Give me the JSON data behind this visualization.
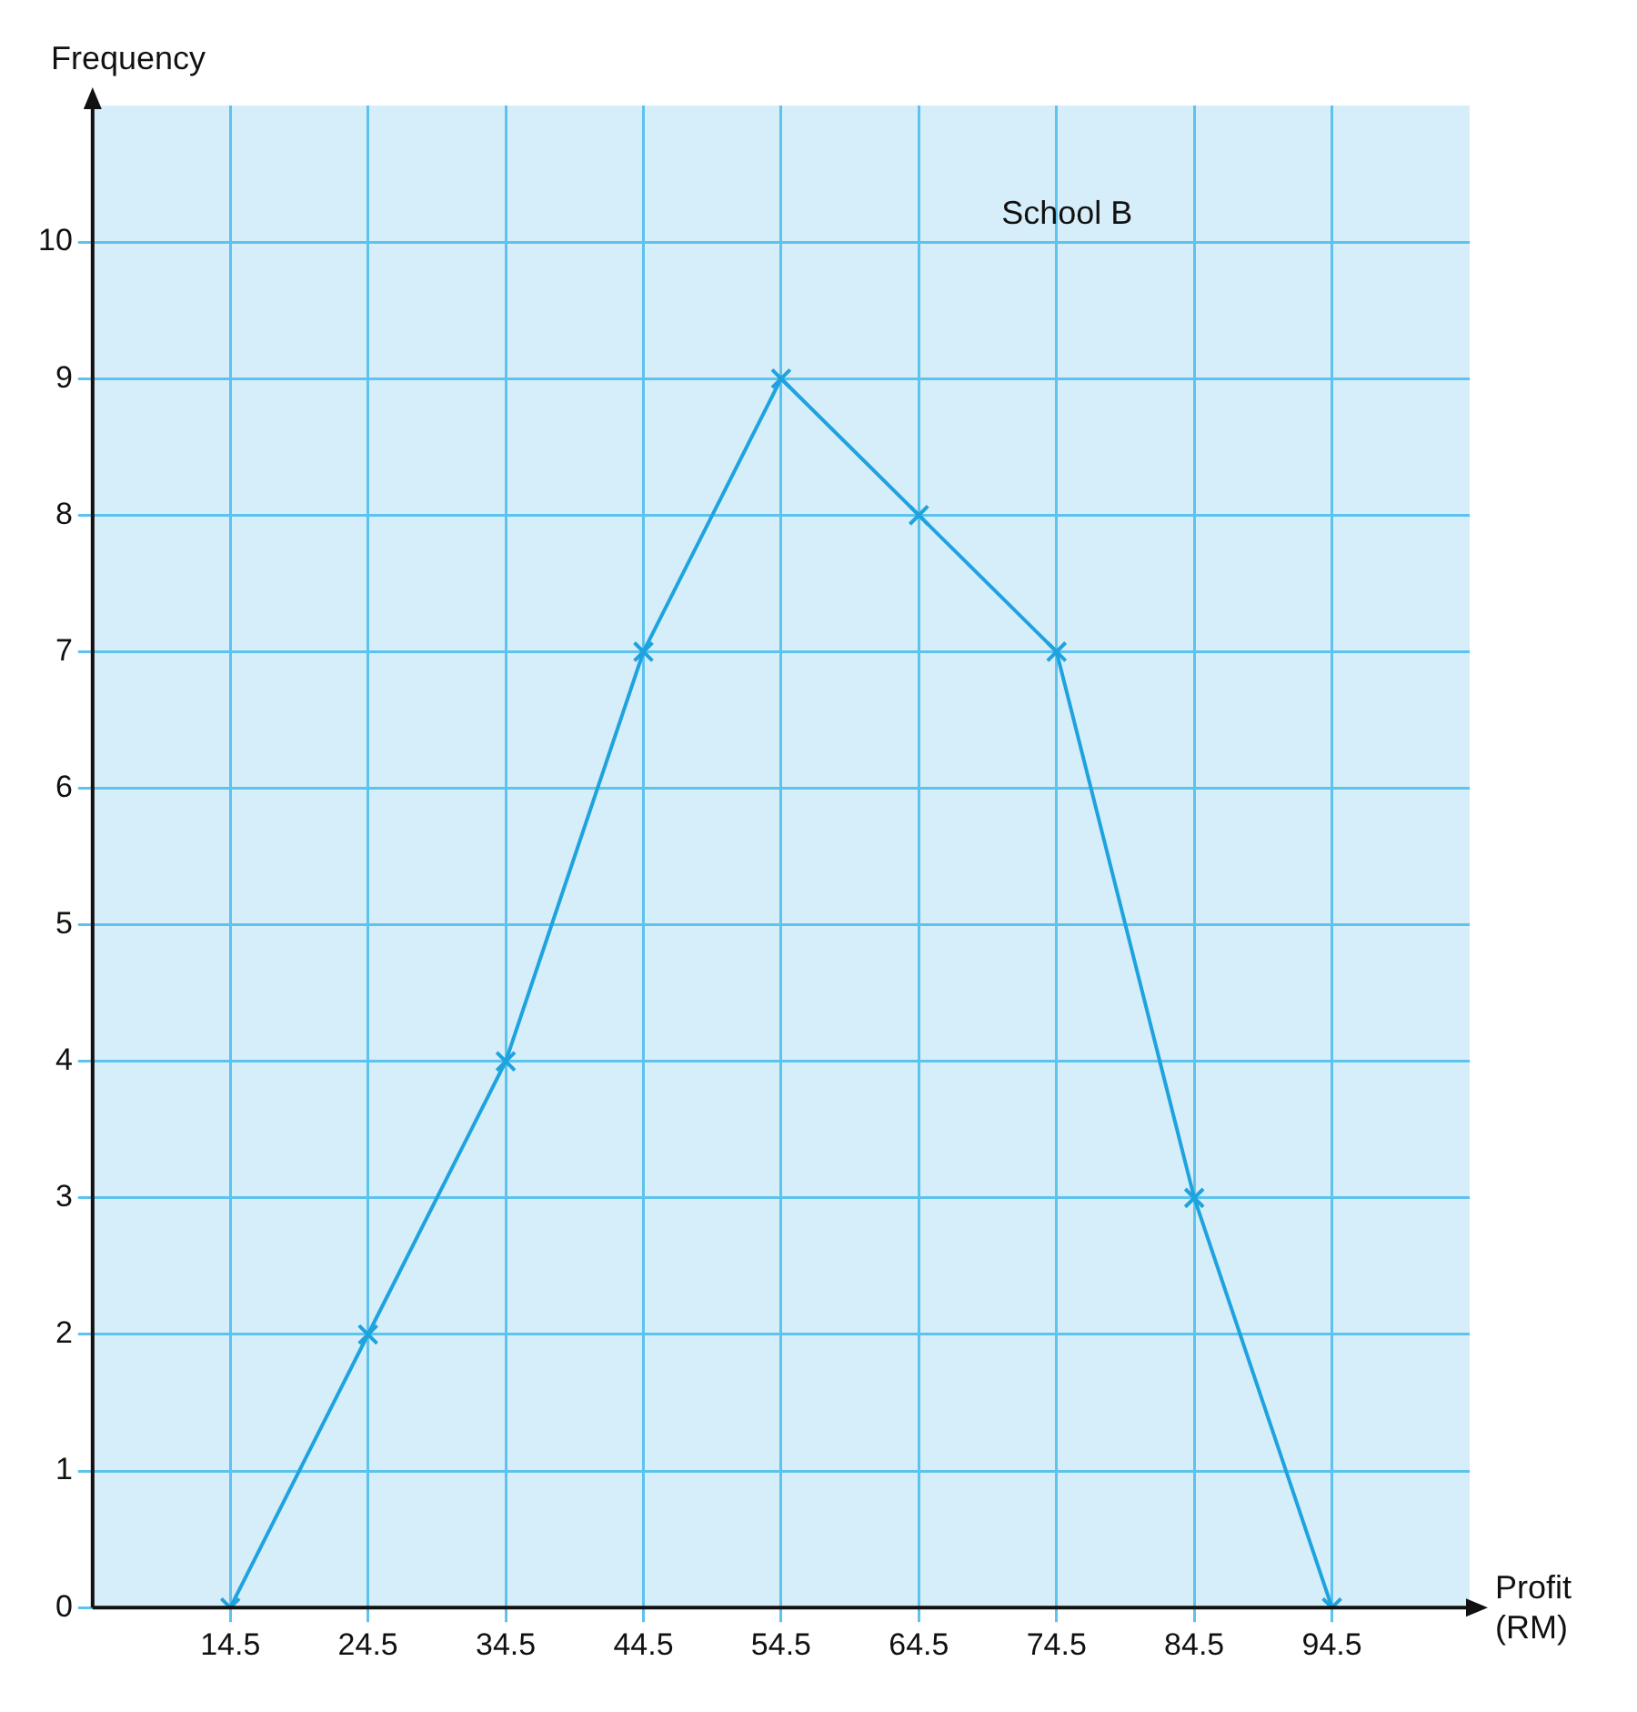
{
  "chart_data": {
    "type": "line",
    "xlabel": "Profit (RM)",
    "ylabel": "Frequency",
    "annotations": [
      "School B"
    ],
    "x": [
      14.5,
      24.5,
      34.5,
      44.5,
      54.5,
      64.5,
      74.5,
      84.5,
      94.5
    ],
    "series": [
      {
        "color": "#1fa3df",
        "values": [
          0,
          2,
          4,
          7,
          9,
          8,
          7,
          3,
          0
        ]
      }
    ],
    "xlim": [
      4.5,
      104.5
    ],
    "xticks": [
      14.5,
      24.5,
      34.5,
      44.5,
      54.5,
      64.5,
      74.5,
      84.5,
      94.5
    ],
    "ylim": [
      0,
      11
    ],
    "yticks": [
      0,
      1,
      2,
      3,
      4,
      5,
      6,
      7,
      8,
      9,
      10
    ],
    "grid": true,
    "legend": false,
    "marker": "cross",
    "line_style": "solid"
  }
}
